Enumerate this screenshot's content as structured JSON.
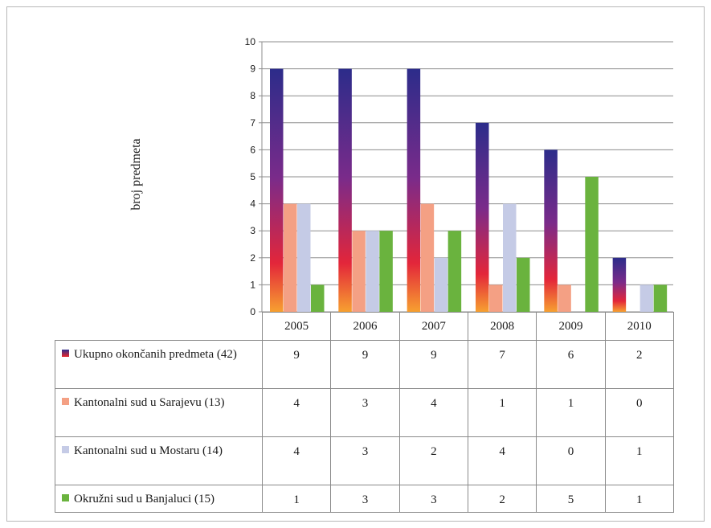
{
  "chart_data": {
    "type": "bar",
    "title": "",
    "xlabel": "",
    "ylabel": "broj predmeta",
    "ylim": [
      0,
      10
    ],
    "yticks": [
      0,
      1,
      2,
      3,
      4,
      5,
      6,
      7,
      8,
      9,
      10
    ],
    "grid": true,
    "legend": "table-rows",
    "categories": [
      "2005",
      "2006",
      "2007",
      "2008",
      "2009",
      "2010"
    ],
    "series": [
      {
        "name": "Ukupno okončanih predmeta (42)",
        "values": [
          9,
          9,
          9,
          7,
          6,
          2
        ],
        "color": "#2b2d8f",
        "color_bottom": "#e8252a",
        "gradient": true
      },
      {
        "name": "Kantonalni sud u Sarajevu (13)",
        "values": [
          4,
          3,
          4,
          1,
          1,
          0
        ],
        "color": "#f4a084"
      },
      {
        "name": "Kantonalni sud u Mostaru (14)",
        "values": [
          4,
          3,
          2,
          4,
          0,
          1
        ],
        "color": "#c5cbe6"
      },
      {
        "name": "Okružni sud u Banjaluci (15)",
        "values": [
          1,
          3,
          3,
          2,
          5,
          1
        ],
        "color": "#6ab33e"
      }
    ]
  }
}
